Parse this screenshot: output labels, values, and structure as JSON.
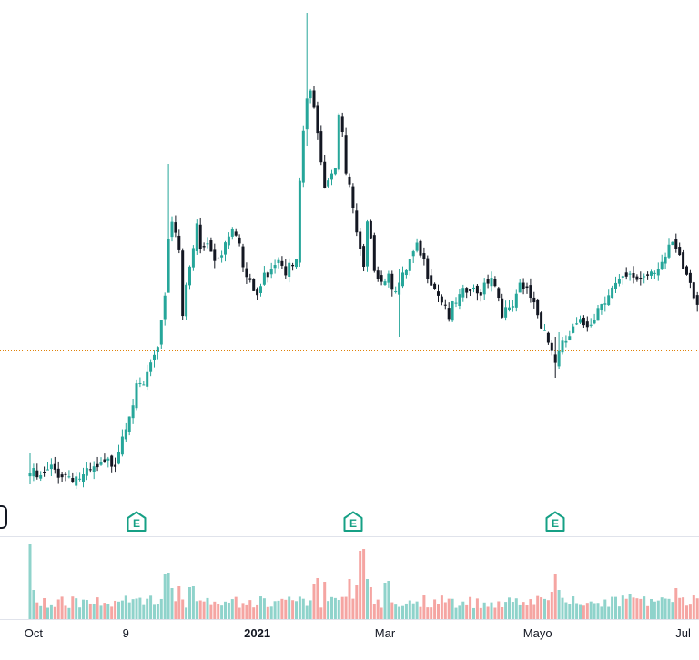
{
  "chart_data": {
    "type": "candlestick",
    "title": "",
    "xlabel": "",
    "ylabel": "",
    "x_tick_labels": [
      {
        "label": "Oct",
        "day": 1,
        "bold": false
      },
      {
        "label": "9",
        "day": 27,
        "bold": false
      },
      {
        "label": "2021",
        "day": 64,
        "bold": true
      },
      {
        "label": "Mar",
        "day": 100,
        "bold": false
      },
      {
        "label": "Mayo",
        "day": 143,
        "bold": false
      },
      {
        "label": "Jul",
        "day": 184,
        "bold": false
      }
    ],
    "price_range": [
      0,
      560
    ],
    "reference_line_price": 175,
    "close_keypoints": [
      [
        0,
        40
      ],
      [
        3,
        33
      ],
      [
        6,
        44
      ],
      [
        9,
        40
      ],
      [
        15,
        35
      ],
      [
        17,
        40
      ],
      [
        21,
        48
      ],
      [
        24,
        55
      ],
      [
        26,
        85
      ],
      [
        28,
        110
      ],
      [
        30,
        130
      ],
      [
        32,
        135
      ],
      [
        34,
        160
      ],
      [
        36,
        170
      ],
      [
        37,
        200
      ],
      [
        38,
        240
      ],
      [
        39,
        300
      ],
      [
        40,
        320
      ],
      [
        42,
        290
      ],
      [
        43,
        220
      ],
      [
        44,
        250
      ],
      [
        45,
        260
      ],
      [
        47,
        310
      ],
      [
        48,
        285
      ],
      [
        50,
        290
      ],
      [
        52,
        275
      ],
      [
        54,
        285
      ],
      [
        57,
        315
      ],
      [
        59,
        300
      ],
      [
        60,
        265
      ],
      [
        62,
        245
      ],
      [
        64,
        235
      ],
      [
        66,
        255
      ],
      [
        68,
        270
      ],
      [
        70,
        280
      ],
      [
        72,
        265
      ],
      [
        73,
        280
      ],
      [
        75,
        270
      ],
      [
        76,
        360
      ],
      [
        77,
        410
      ],
      [
        78,
        450
      ],
      [
        79,
        460
      ],
      [
        81,
        410
      ],
      [
        82,
        390
      ],
      [
        83,
        360
      ],
      [
        84,
        370
      ],
      [
        86,
        380
      ],
      [
        87,
        440
      ],
      [
        88,
        420
      ],
      [
        89,
        370
      ],
      [
        91,
        330
      ],
      [
        92,
        300
      ],
      [
        94,
        260
      ],
      [
        95,
        310
      ],
      [
        96,
        290
      ],
      [
        97,
        270
      ],
      [
        99,
        255
      ],
      [
        101,
        260
      ],
      [
        102,
        250
      ],
      [
        104,
        245
      ],
      [
        106,
        260
      ],
      [
        107,
        270
      ],
      [
        109,
        285
      ],
      [
        111,
        270
      ],
      [
        113,
        255
      ],
      [
        115,
        240
      ],
      [
        117,
        225
      ],
      [
        118,
        215
      ],
      [
        120,
        225
      ],
      [
        122,
        235
      ],
      [
        124,
        240
      ],
      [
        126,
        235
      ],
      [
        128,
        250
      ],
      [
        130,
        260
      ],
      [
        132,
        235
      ],
      [
        133,
        220
      ],
      [
        135,
        215
      ],
      [
        137,
        230
      ],
      [
        138,
        242
      ],
      [
        140,
        240
      ],
      [
        142,
        230
      ],
      [
        143,
        215
      ],
      [
        145,
        200
      ],
      [
        146,
        185
      ],
      [
        148,
        165
      ],
      [
        149,
        170
      ],
      [
        151,
        185
      ],
      [
        153,
        195
      ],
      [
        154,
        200
      ],
      [
        157,
        205
      ],
      [
        159,
        215
      ],
      [
        161,
        230
      ],
      [
        163,
        240
      ],
      [
        165,
        245
      ],
      [
        167,
        250
      ],
      [
        170,
        255
      ],
      [
        172,
        255
      ],
      [
        175,
        265
      ],
      [
        177,
        270
      ],
      [
        179,
        275
      ],
      [
        181,
        290
      ],
      [
        182,
        280
      ],
      [
        184,
        265
      ],
      [
        186,
        250
      ],
      [
        187,
        235
      ],
      [
        188,
        230
      ]
    ],
    "notable_wicks": [
      {
        "day": 0,
        "high": 62,
        "low": 28
      },
      {
        "day": 39,
        "high": 380,
        "low": 240
      },
      {
        "day": 78,
        "high": 546,
        "low": 400
      },
      {
        "day": 104,
        "high": 265,
        "low": 190
      },
      {
        "day": 148,
        "high": 190,
        "low": 145
      },
      {
        "day": 149,
        "high": 195,
        "low": 155
      }
    ],
    "volume_base": 12,
    "volume_spikes": [
      {
        "day": 0,
        "value": 82
      },
      {
        "day": 1,
        "value": 32
      },
      {
        "day": 4,
        "value": 23
      },
      {
        "day": 38,
        "value": 50
      },
      {
        "day": 39,
        "value": 51
      },
      {
        "day": 40,
        "value": 34
      },
      {
        "day": 42,
        "value": 36
      },
      {
        "day": 45,
        "value": 35
      },
      {
        "day": 46,
        "value": 36
      },
      {
        "day": 80,
        "value": 38
      },
      {
        "day": 81,
        "value": 45
      },
      {
        "day": 83,
        "value": 41
      },
      {
        "day": 90,
        "value": 44
      },
      {
        "day": 92,
        "value": 37
      },
      {
        "day": 93,
        "value": 75
      },
      {
        "day": 94,
        "value": 77
      },
      {
        "day": 95,
        "value": 44
      },
      {
        "day": 96,
        "value": 35
      },
      {
        "day": 100,
        "value": 40
      },
      {
        "day": 101,
        "value": 42
      },
      {
        "day": 147,
        "value": 30
      },
      {
        "day": 148,
        "value": 50
      },
      {
        "day": 149,
        "value": 32
      },
      {
        "day": 169,
        "value": 28
      },
      {
        "day": 182,
        "value": 34
      }
    ],
    "colors": {
      "up": "#26a69a",
      "down": "#131722",
      "volume_up": "#8fd3cb",
      "volume_down": "#f5a5a2",
      "reference_line": "#e0820a",
      "earnings": "#16a085"
    },
    "earnings_markers": [
      {
        "day": 30,
        "label": "E"
      },
      {
        "day": 91,
        "label": "E"
      },
      {
        "day": 148,
        "label": "E"
      }
    ]
  }
}
